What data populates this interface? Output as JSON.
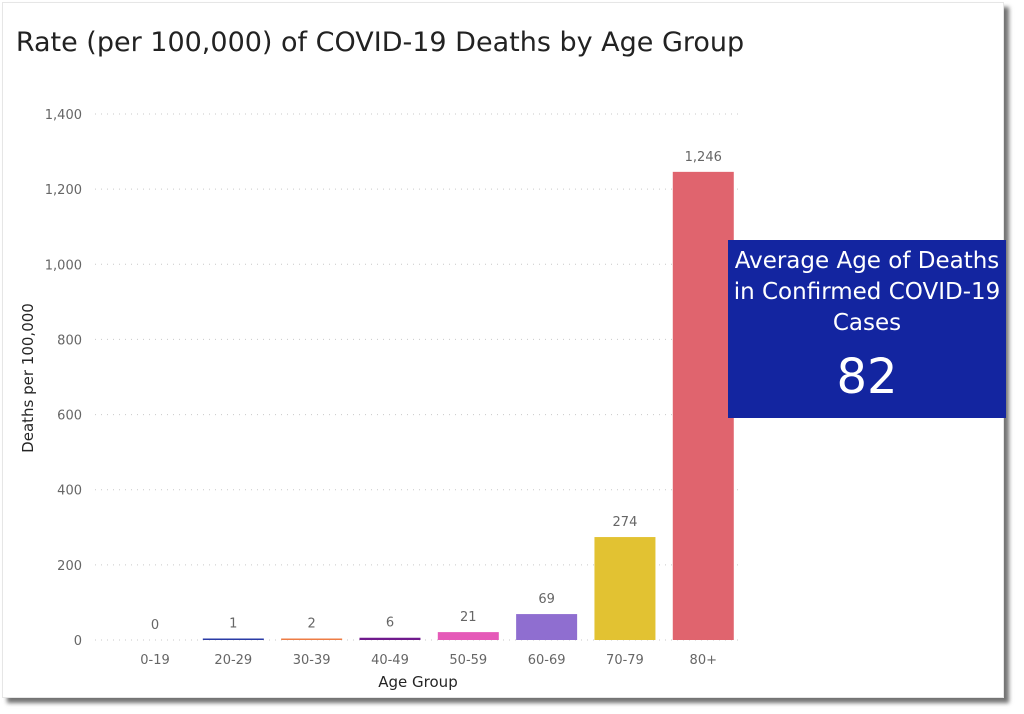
{
  "chart_data": {
    "type": "bar",
    "title": "Rate (per 100,000) of COVID-19 Deaths by Age Group",
    "xlabel": "Age Group",
    "ylabel": "Deaths per 100,000",
    "categories": [
      "0-19",
      "20-29",
      "30-39",
      "40-49",
      "50-59",
      "60-69",
      "70-79",
      "80+"
    ],
    "values": [
      0,
      1,
      2,
      6,
      21,
      69,
      274,
      1246
    ],
    "value_labels": [
      "0",
      "1",
      "2",
      "6",
      "21",
      "69",
      "274",
      "1,246"
    ],
    "ylim": [
      0,
      1400
    ],
    "yticks": [
      0,
      200,
      400,
      600,
      800,
      1000,
      1200,
      1400
    ],
    "ytick_labels": [
      "0",
      "200",
      "400",
      "600",
      "800",
      "1,000",
      "1,200",
      "1,400"
    ],
    "bar_colors": [
      "#17a2a0",
      "#2a3ba6",
      "#ee7c44",
      "#6f1a8c",
      "#e55ab8",
      "#8f6ed0",
      "#e2c232",
      "#e0646e"
    ],
    "grid": true
  },
  "kpi": {
    "label": "Average Age of Deaths in Confirmed COVID-19 Cases",
    "value": "82",
    "background_color": "#1325a0"
  }
}
